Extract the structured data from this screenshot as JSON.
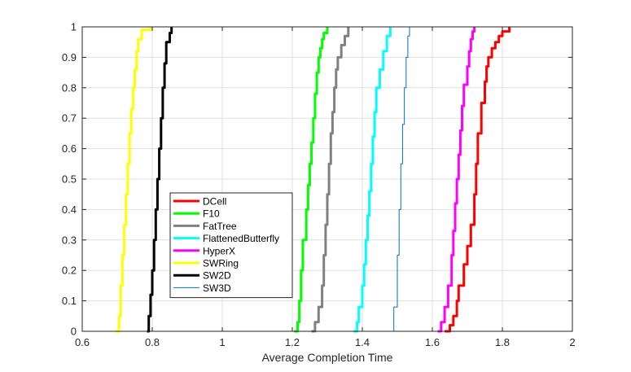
{
  "chart_data": {
    "type": "line",
    "title": "",
    "xlabel": "Average Completion Time",
    "ylabel": "",
    "xlim": [
      0.6,
      2.0
    ],
    "ylim": [
      0,
      1
    ],
    "xticks": [
      0.6,
      0.8,
      1,
      1.2,
      1.4,
      1.6,
      1.8,
      2
    ],
    "xtick_labels": [
      "0.6",
      "0.8",
      "1",
      "1.2",
      "1.4",
      "1.6",
      "1.8",
      "2"
    ],
    "yticks": [
      0,
      0.1,
      0.2,
      0.3,
      0.4,
      0.5,
      0.6,
      0.7,
      0.8,
      0.9,
      1
    ],
    "ytick_labels": [
      "0",
      "0.1",
      "0.2",
      "0.3",
      "0.4",
      "0.5",
      "0.6",
      "0.7",
      "0.8",
      "0.9",
      "1"
    ],
    "grid": true,
    "legend_position": "center-left",
    "series": [
      {
        "name": "DCell",
        "color": "#ff0000",
        "width": 3,
        "x": [
          1.635,
          1.65,
          1.66,
          1.67,
          1.675,
          1.69,
          1.7,
          1.71,
          1.72,
          1.725,
          1.73,
          1.74,
          1.75,
          1.755,
          1.76,
          1.77,
          1.78,
          1.79,
          1.8,
          1.82
        ],
        "y": [
          0,
          0.02,
          0.05,
          0.1,
          0.15,
          0.22,
          0.28,
          0.35,
          0.45,
          0.55,
          0.65,
          0.75,
          0.82,
          0.87,
          0.9,
          0.93,
          0.95,
          0.97,
          0.985,
          1.0
        ]
      },
      {
        "name": "F10",
        "color": "#00ff00",
        "width": 3,
        "x": [
          1.205,
          1.215,
          1.22,
          1.225,
          1.23,
          1.24,
          1.245,
          1.25,
          1.255,
          1.26,
          1.265,
          1.27,
          1.275,
          1.28,
          1.285,
          1.29,
          1.3
        ],
        "y": [
          0,
          0.03,
          0.1,
          0.2,
          0.3,
          0.4,
          0.48,
          0.55,
          0.62,
          0.7,
          0.78,
          0.85,
          0.9,
          0.93,
          0.96,
          0.98,
          1.0
        ]
      },
      {
        "name": "FatTree",
        "color": "#808080",
        "width": 3,
        "x": [
          1.255,
          1.265,
          1.275,
          1.285,
          1.29,
          1.295,
          1.3,
          1.305,
          1.31,
          1.315,
          1.32,
          1.325,
          1.33,
          1.34,
          1.35,
          1.36
        ],
        "y": [
          0,
          0.03,
          0.08,
          0.15,
          0.25,
          0.35,
          0.45,
          0.55,
          0.65,
          0.72,
          0.8,
          0.86,
          0.9,
          0.94,
          0.97,
          1.0
        ]
      },
      {
        "name": "FlattenedButterfly",
        "color": "#00ffff",
        "width": 3,
        "x": [
          1.375,
          1.385,
          1.39,
          1.4,
          1.405,
          1.41,
          1.415,
          1.42,
          1.425,
          1.43,
          1.435,
          1.44,
          1.45,
          1.46,
          1.47,
          1.48
        ],
        "y": [
          0,
          0.03,
          0.08,
          0.15,
          0.22,
          0.3,
          0.38,
          0.46,
          0.55,
          0.64,
          0.72,
          0.8,
          0.86,
          0.92,
          0.97,
          1.0
        ]
      },
      {
        "name": "HyperX",
        "color": "#ff00ff",
        "width": 3,
        "x": [
          1.615,
          1.625,
          1.635,
          1.645,
          1.655,
          1.66,
          1.665,
          1.67,
          1.675,
          1.68,
          1.685,
          1.69,
          1.7,
          1.705,
          1.71,
          1.715,
          1.72
        ],
        "y": [
          0,
          0.03,
          0.08,
          0.15,
          0.25,
          0.33,
          0.42,
          0.5,
          0.58,
          0.66,
          0.74,
          0.81,
          0.87,
          0.92,
          0.96,
          0.985,
          1.0
        ]
      },
      {
        "name": "SWRing",
        "color": "#ffff00",
        "width": 3,
        "x": [
          0.695,
          0.705,
          0.71,
          0.715,
          0.72,
          0.725,
          0.73,
          0.735,
          0.74,
          0.745,
          0.75,
          0.755,
          0.76,
          0.77,
          0.795
        ],
        "y": [
          0,
          0.05,
          0.15,
          0.25,
          0.35,
          0.45,
          0.55,
          0.65,
          0.73,
          0.8,
          0.86,
          0.92,
          0.96,
          0.99,
          1.0
        ]
      },
      {
        "name": "SW2D",
        "color": "#000000",
        "width": 3,
        "x": [
          0.785,
          0.79,
          0.795,
          0.8,
          0.805,
          0.81,
          0.815,
          0.82,
          0.825,
          0.83,
          0.835,
          0.84,
          0.85,
          0.855
        ],
        "y": [
          0,
          0.05,
          0.12,
          0.2,
          0.3,
          0.4,
          0.5,
          0.6,
          0.7,
          0.8,
          0.88,
          0.95,
          0.98,
          1.0
        ]
      },
      {
        "name": "SW3D",
        "color": "#0072bd",
        "width": 1,
        "x": [
          1.48,
          1.49,
          1.5,
          1.505,
          1.51,
          1.515,
          1.52,
          1.525,
          1.53,
          1.535
        ],
        "y": [
          0,
          0.08,
          0.25,
          0.4,
          0.55,
          0.68,
          0.8,
          0.9,
          0.97,
          1.0
        ]
      }
    ]
  }
}
